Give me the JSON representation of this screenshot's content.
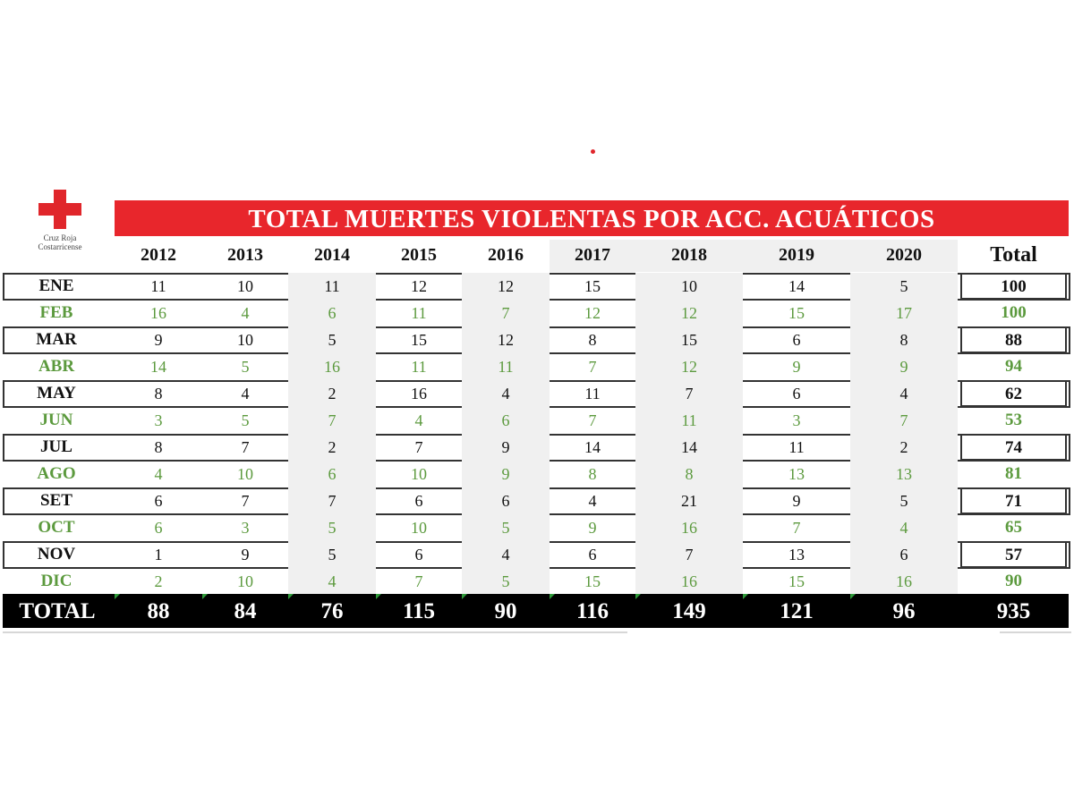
{
  "logo": {
    "org_line1": "Cruz Roja",
    "org_line2": "Costarricense"
  },
  "title": "TOTAL MUERTES VIOLENTAS POR ACC. ACUÁTICOS",
  "table": {
    "years": [
      "2012",
      "2013",
      "2014",
      "2015",
      "2016",
      "2017",
      "2018",
      "2019",
      "2020"
    ],
    "total_header": "Total",
    "rows": [
      {
        "month": "ENE",
        "values": [
          "11",
          "10",
          "11",
          "12",
          "12",
          "15",
          "10",
          "14",
          "5"
        ],
        "total": "100"
      },
      {
        "month": "FEB",
        "values": [
          "16",
          "4",
          "6",
          "11",
          "7",
          "12",
          "12",
          "15",
          "17"
        ],
        "total": "100"
      },
      {
        "month": "MAR",
        "values": [
          "9",
          "10",
          "5",
          "15",
          "12",
          "8",
          "15",
          "6",
          "8"
        ],
        "total": "88"
      },
      {
        "month": "ABR",
        "values": [
          "14",
          "5",
          "16",
          "11",
          "11",
          "7",
          "12",
          "9",
          "9"
        ],
        "total": "94"
      },
      {
        "month": "MAY",
        "values": [
          "8",
          "4",
          "2",
          "16",
          "4",
          "11",
          "7",
          "6",
          "4"
        ],
        "total": "62"
      },
      {
        "month": "JUN",
        "values": [
          "3",
          "5",
          "7",
          "4",
          "6",
          "7",
          "11",
          "3",
          "7"
        ],
        "total": "53"
      },
      {
        "month": "JUL",
        "values": [
          "8",
          "7",
          "2",
          "7",
          "9",
          "14",
          "14",
          "11",
          "2"
        ],
        "total": "74"
      },
      {
        "month": "AGO",
        "values": [
          "4",
          "10",
          "6",
          "10",
          "9",
          "8",
          "8",
          "13",
          "13"
        ],
        "total": "81"
      },
      {
        "month": "SET",
        "values": [
          "6",
          "7",
          "7",
          "6",
          "6",
          "4",
          "21",
          "9",
          "5"
        ],
        "total": "71"
      },
      {
        "month": "OCT",
        "values": [
          "6",
          "3",
          "5",
          "10",
          "5",
          "9",
          "16",
          "7",
          "4"
        ],
        "total": "65"
      },
      {
        "month": "NOV",
        "values": [
          "1",
          "9",
          "5",
          "6",
          "4",
          "6",
          "7",
          "13",
          "6"
        ],
        "total": "57"
      },
      {
        "month": "DIC",
        "values": [
          "2",
          "10",
          "4",
          "7",
          "5",
          "15",
          "16",
          "15",
          "16"
        ],
        "total": "90"
      }
    ],
    "totals_label": "TOTAL",
    "totals": [
      "88",
      "84",
      "76",
      "115",
      "90",
      "116",
      "149",
      "121",
      "96"
    ],
    "grand_total": "935"
  },
  "colors": {
    "title_bar": "#e8262c",
    "cross": "#e0262b",
    "even_row_text": "#5c9a3e",
    "odd_row_text": "#111111",
    "totals_bar": "#000000"
  }
}
